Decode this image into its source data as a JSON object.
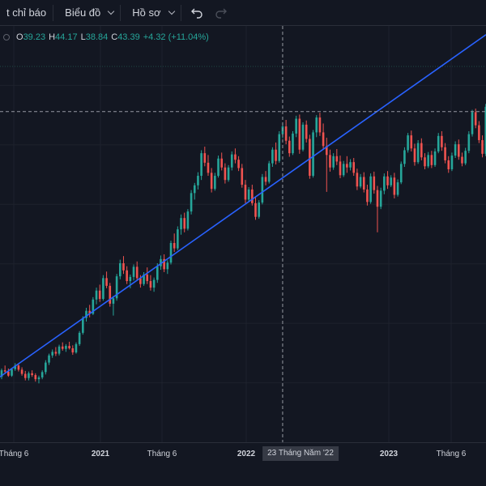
{
  "toolbar": {
    "indicators_label": "t chỉ báo",
    "chart_label": "Biểu đồ",
    "profile_label": "Hồ sơ"
  },
  "legend": {
    "open_key": "O",
    "open_value": "39.23",
    "high_key": "H",
    "high_value": "44.17",
    "low_key": "L",
    "low_value": "38.84",
    "close_key": "C",
    "close_value": "43.39",
    "change": "+4.32 (+11.04%)",
    "up_color": "#26a69a"
  },
  "time_axis": {
    "labels": [
      "Tháng 6",
      "2021",
      "Tháng 6",
      "2022",
      "2023",
      "Tháng 6"
    ],
    "crosshair_label": "23 Tháng Năm '22"
  },
  "chart_data": {
    "type": "candlestick",
    "colors": {
      "up": "#26a69a",
      "down": "#ef5350",
      "trendline": "#2962ff",
      "background": "#131722"
    },
    "price_range": [
      0,
      70
    ],
    "series": [
      {
        "name": "",
        "values": [
          [
            11.0,
            12.4,
            10.6,
            12.1
          ],
          [
            12.1,
            12.9,
            11.5,
            11.9
          ],
          [
            11.9,
            12.4,
            11.0,
            11.2
          ],
          [
            11.2,
            12.5,
            11.0,
            12.3
          ],
          [
            12.3,
            13.3,
            12.0,
            12.9
          ],
          [
            12.9,
            13.2,
            11.9,
            12.2
          ],
          [
            12.2,
            12.6,
            11.2,
            11.5
          ],
          [
            11.5,
            12.0,
            10.4,
            10.8
          ],
          [
            10.8,
            11.9,
            10.4,
            11.6
          ],
          [
            11.6,
            12.1,
            11.0,
            11.3
          ],
          [
            11.3,
            11.6,
            10.2,
            10.6
          ],
          [
            10.6,
            11.2,
            9.9,
            10.9
          ],
          [
            10.9,
            12.1,
            10.6,
            11.8
          ],
          [
            11.8,
            13.8,
            11.4,
            13.4
          ],
          [
            13.4,
            14.9,
            13.0,
            14.6
          ],
          [
            14.6,
            15.6,
            14.2,
            15.2
          ],
          [
            15.2,
            16.0,
            14.5,
            14.9
          ],
          [
            14.9,
            16.4,
            14.6,
            16.1
          ],
          [
            16.1,
            16.8,
            15.4,
            15.7
          ],
          [
            15.7,
            16.5,
            15.2,
            16.2
          ],
          [
            16.2,
            16.9,
            15.6,
            15.8
          ],
          [
            15.8,
            16.3,
            14.7,
            15.1
          ],
          [
            15.1,
            16.8,
            14.9,
            16.5
          ],
          [
            16.5,
            18.7,
            16.2,
            18.4
          ],
          [
            18.4,
            21.2,
            18.1,
            20.9
          ],
          [
            20.9,
            22.6,
            20.3,
            22.1
          ],
          [
            22.1,
            23.1,
            21.0,
            21.6
          ],
          [
            21.6,
            24.4,
            21.4,
            24.0
          ],
          [
            24.0,
            26.0,
            23.2,
            25.5
          ],
          [
            25.5,
            26.5,
            23.6,
            24.1
          ],
          [
            24.1,
            28.1,
            23.8,
            27.6
          ],
          [
            27.6,
            28.7,
            25.9,
            26.3
          ],
          [
            26.3,
            26.8,
            22.8,
            23.3
          ],
          [
            23.3,
            24.6,
            21.3,
            24.2
          ],
          [
            24.2,
            28.3,
            23.8,
            27.9
          ],
          [
            27.9,
            30.7,
            27.4,
            30.1
          ],
          [
            30.1,
            31.3,
            28.3,
            28.9
          ],
          [
            28.9,
            29.6,
            26.6,
            27.1
          ],
          [
            27.1,
            28.2,
            25.9,
            27.8
          ],
          [
            27.8,
            29.9,
            27.2,
            29.5
          ],
          [
            29.5,
            30.4,
            27.2,
            27.6
          ],
          [
            27.6,
            28.1,
            26.0,
            26.6
          ],
          [
            26.6,
            28.6,
            26.3,
            28.2
          ],
          [
            28.2,
            29.4,
            26.6,
            27.1
          ],
          [
            27.1,
            28.1,
            25.5,
            26.0
          ],
          [
            26.0,
            27.7,
            25.3,
            27.3
          ],
          [
            27.3,
            30.1,
            26.8,
            29.6
          ],
          [
            29.6,
            31.4,
            29.0,
            30.8
          ],
          [
            30.8,
            31.6,
            28.6,
            29.1
          ],
          [
            29.1,
            30.6,
            28.3,
            30.2
          ],
          [
            30.2,
            33.9,
            29.9,
            33.5
          ],
          [
            33.5,
            35.1,
            32.0,
            32.6
          ],
          [
            32.6,
            36.3,
            32.3,
            35.8
          ],
          [
            35.8,
            38.3,
            34.9,
            37.7
          ],
          [
            37.7,
            38.6,
            35.3,
            35.9
          ],
          [
            35.9,
            39.2,
            35.6,
            38.8
          ],
          [
            38.8,
            42.4,
            38.3,
            41.9
          ],
          [
            41.9,
            43.6,
            40.8,
            43.2
          ],
          [
            43.2,
            45.4,
            42.5,
            44.8
          ],
          [
            44.8,
            49.1,
            44.1,
            48.6
          ],
          [
            48.6,
            49.7,
            46.4,
            47.0
          ],
          [
            47.0,
            48.3,
            44.8,
            45.3
          ],
          [
            45.3,
            46.1,
            42.0,
            42.6
          ],
          [
            42.6,
            45.3,
            42.3,
            44.8
          ],
          [
            44.8,
            48.2,
            44.5,
            47.7
          ],
          [
            47.7,
            48.7,
            45.7,
            46.2
          ],
          [
            46.2,
            46.9,
            43.5,
            44.1
          ],
          [
            44.1,
            46.6,
            43.8,
            46.2
          ],
          [
            46.2,
            48.9,
            45.7,
            48.4
          ],
          [
            48.4,
            49.4,
            46.9,
            47.5
          ],
          [
            47.5,
            48.1,
            45.6,
            46.1
          ],
          [
            46.1,
            46.8,
            42.8,
            43.3
          ],
          [
            43.3,
            44.1,
            40.2,
            40.8
          ],
          [
            40.8,
            42.9,
            40.4,
            42.5
          ],
          [
            42.5,
            43.3,
            39.8,
            40.2
          ],
          [
            40.2,
            41.3,
            37.4,
            37.9
          ],
          [
            37.9,
            40.7,
            37.6,
            40.3
          ],
          [
            40.3,
            45.1,
            40.0,
            44.6
          ],
          [
            44.6,
            45.6,
            43.2,
            43.8
          ],
          [
            43.8,
            47.3,
            43.5,
            46.9
          ],
          [
            46.9,
            49.6,
            46.3,
            49.2
          ],
          [
            49.2,
            50.4,
            46.7,
            47.3
          ],
          [
            47.3,
            52.3,
            47.0,
            51.8
          ],
          [
            51.8,
            53.8,
            51.1,
            53.1
          ],
          [
            53.1,
            54.2,
            50.1,
            50.7
          ],
          [
            50.7,
            51.4,
            48.0,
            48.6
          ],
          [
            48.6,
            52.3,
            48.3,
            51.9
          ],
          [
            51.9,
            54.9,
            51.3,
            54.4
          ],
          [
            54.4,
            55.1,
            48.5,
            49.2
          ],
          [
            49.2,
            53.8,
            48.9,
            53.4
          ],
          [
            53.4,
            54.1,
            50.4,
            51.0
          ],
          [
            51.0,
            51.7,
            44.3,
            44.8
          ],
          [
            44.8,
            52.5,
            44.5,
            52.1
          ],
          [
            52.1,
            55.0,
            51.3,
            54.6
          ],
          [
            54.6,
            55.4,
            51.5,
            52.1
          ],
          [
            52.1,
            53.6,
            49.2,
            49.8
          ],
          [
            49.8,
            51.2,
            42.1,
            48.3
          ],
          [
            48.3,
            49.2,
            45.5,
            46.2
          ],
          [
            46.2,
            48.6,
            45.8,
            48.1
          ],
          [
            48.1,
            49.3,
            46.6,
            47.2
          ],
          [
            47.2,
            48.2,
            44.4,
            44.9
          ],
          [
            44.9,
            47.3,
            44.6,
            46.8
          ],
          [
            46.8,
            48.1,
            45.3,
            46.2
          ],
          [
            46.2,
            47.6,
            45.7,
            47.1
          ],
          [
            47.1,
            47.8,
            44.8,
            45.3
          ],
          [
            45.3,
            46.0,
            42.4,
            43.0
          ],
          [
            43.0,
            45.1,
            42.7,
            44.6
          ],
          [
            44.6,
            45.4,
            42.0,
            42.5
          ],
          [
            42.5,
            43.3,
            39.8,
            40.4
          ],
          [
            40.4,
            45.2,
            40.1,
            44.7
          ],
          [
            44.7,
            45.5,
            41.8,
            42.4
          ],
          [
            42.4,
            43.1,
            35.3,
            39.6
          ],
          [
            39.6,
            42.8,
            39.2,
            42.3
          ],
          [
            42.3,
            45.2,
            41.7,
            44.7
          ],
          [
            44.7,
            45.6,
            42.6,
            43.2
          ],
          [
            43.2,
            44.9,
            42.9,
            44.5
          ],
          [
            44.5,
            45.3,
            41.0,
            41.6
          ],
          [
            41.6,
            44.2,
            41.3,
            43.7
          ],
          [
            43.7,
            47.2,
            43.4,
            46.8
          ],
          [
            46.8,
            49.6,
            46.3,
            49.1
          ],
          [
            49.1,
            52.0,
            48.7,
            51.6
          ],
          [
            51.6,
            52.4,
            48.9,
            49.4
          ],
          [
            49.4,
            50.2,
            46.5,
            47.1
          ],
          [
            47.1,
            50.8,
            46.8,
            50.3
          ],
          [
            50.3,
            51.1,
            47.4,
            47.9
          ],
          [
            47.9,
            48.6,
            45.9,
            46.4
          ],
          [
            46.4,
            48.8,
            46.1,
            48.3
          ],
          [
            48.3,
            49.0,
            46.1,
            46.6
          ],
          [
            46.6,
            49.4,
            46.3,
            48.9
          ],
          [
            48.9,
            52.0,
            48.6,
            51.5
          ],
          [
            51.5,
            52.3,
            49.0,
            49.6
          ],
          [
            49.6,
            50.3,
            46.9,
            47.4
          ],
          [
            47.4,
            48.1,
            45.3,
            45.9
          ],
          [
            45.9,
            48.7,
            45.6,
            48.2
          ],
          [
            48.2,
            50.6,
            47.8,
            50.1
          ],
          [
            50.1,
            50.9,
            47.5,
            48.0
          ],
          [
            48.0,
            48.7,
            46.4,
            46.9
          ],
          [
            46.9,
            49.5,
            46.6,
            49.0
          ],
          [
            49.0,
            52.3,
            48.6,
            51.8
          ],
          [
            51.8,
            55.9,
            51.4,
            55.5
          ],
          [
            55.5,
            56.1,
            52.8,
            53.3
          ],
          [
            53.3,
            54.0,
            50.3,
            50.8
          ],
          [
            50.8,
            51.6,
            47.9,
            48.5
          ],
          [
            48.5,
            56.9,
            48.1,
            56.4
          ],
          [
            56.4,
            62.8,
            56.0,
            62.1
          ]
        ]
      }
    ],
    "trendline": {
      "start": [
        0,
        11.2
      ],
      "end": [
        143,
        68.5
      ]
    },
    "crosshair": {
      "index": 83,
      "price": 55.6
    }
  }
}
